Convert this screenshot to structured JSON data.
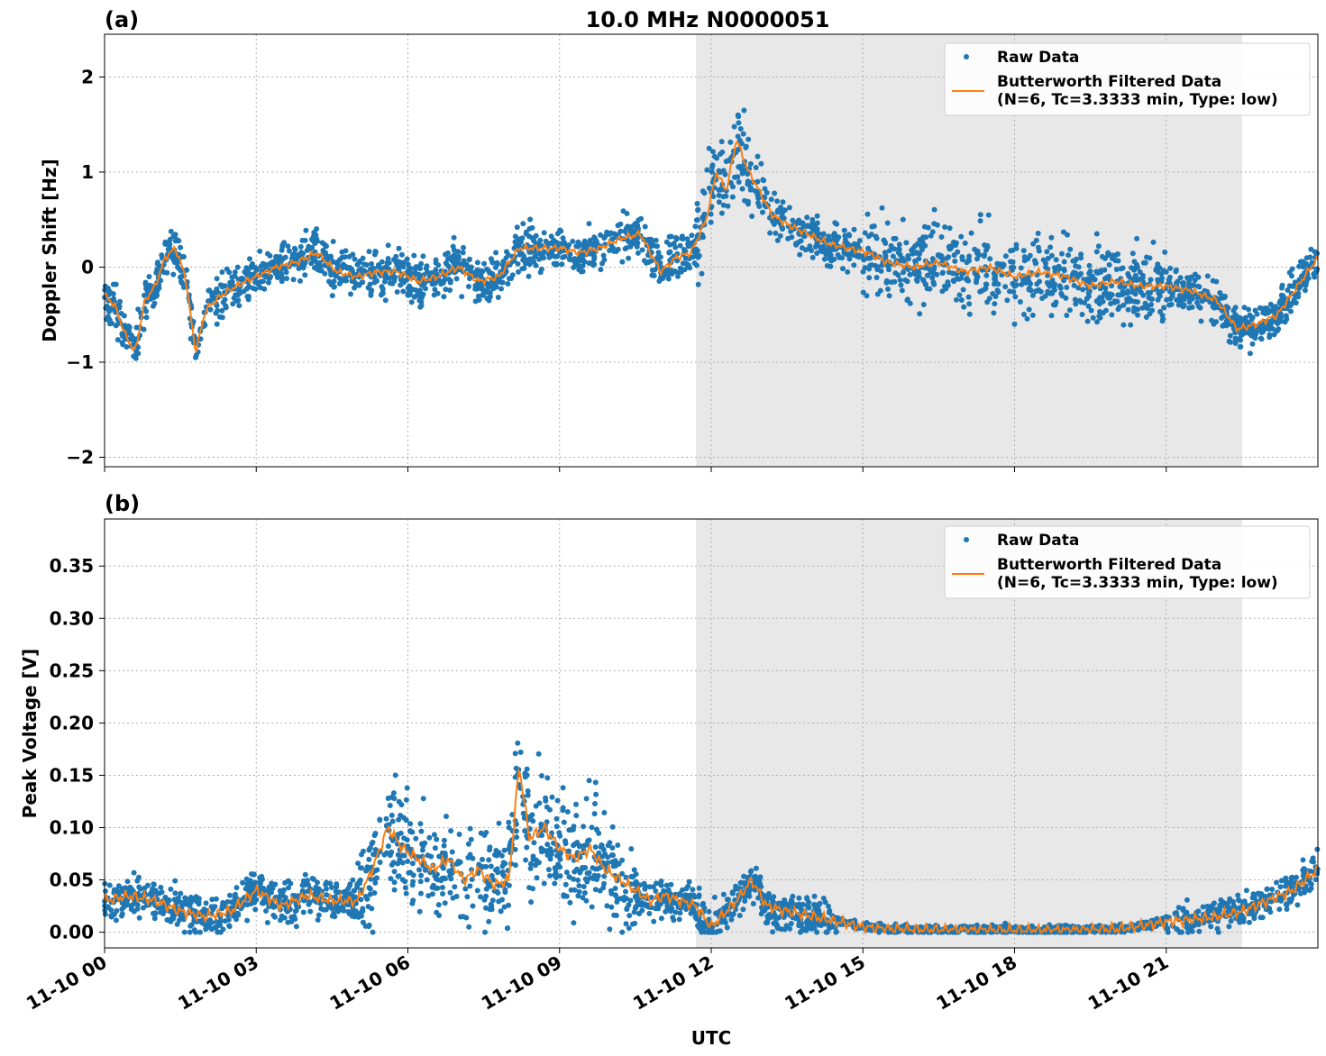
{
  "figure_title": "10.0 MHz N0000051",
  "xlabel": "UTC",
  "x_tick_labels": [
    "11-10 00",
    "11-10 03",
    "11-10 06",
    "11-10 09",
    "11-10 12",
    "11-10 15",
    "11-10 18",
    "11-10 21"
  ],
  "colors": {
    "raw": "#1f77b4",
    "filtered": "#ff7f0e",
    "night_shade": "#e8e8e8",
    "grid": "#b0b0b0"
  },
  "legend": {
    "raw_label": "Raw Data",
    "filtered_line1": "Butterworth Filtered Data",
    "filtered_line2": "(N=6, Tc=3.3333 min, Type: low)",
    "placement": "top-right"
  },
  "chart_data": [
    {
      "panel_label": "(a)",
      "type": "scatter",
      "ylabel": "Doppler Shift [Hz]",
      "xlim_hours": [
        0,
        24
      ],
      "ylim": [
        -2.1,
        2.45
      ],
      "y_ticks": [
        -2,
        -1,
        0,
        1,
        2
      ],
      "y_tick_labels": [
        "−2",
        "−1",
        "0",
        "1",
        "2"
      ],
      "grid": true,
      "shaded_x_range_hours": [
        11.7,
        22.5
      ],
      "series": [
        {
          "name": "Raw Data",
          "style": "dots"
        },
        {
          "name": "Butterworth Filtered Data (N=6, Tc=3.3333 min, Type: low)",
          "style": "line",
          "x_hours": [
            0,
            0.2,
            0.4,
            0.6,
            0.8,
            1.0,
            1.2,
            1.4,
            1.6,
            1.8,
            2.0,
            2.3,
            2.6,
            3.0,
            3.4,
            3.8,
            4.2,
            4.6,
            5.0,
            5.4,
            5.8,
            6.2,
            6.6,
            7.0,
            7.4,
            7.8,
            8.2,
            8.6,
            9.0,
            9.4,
            9.8,
            10.2,
            10.6,
            11.0,
            11.3,
            11.6,
            11.9,
            12.1,
            12.3,
            12.5,
            12.7,
            12.9,
            13.2,
            13.5,
            13.9,
            14.3,
            14.7,
            15.1,
            15.5,
            16.0,
            16.5,
            17.0,
            17.5,
            18.0,
            18.5,
            19.0,
            19.5,
            20.0,
            20.5,
            21.0,
            21.5,
            22.0,
            22.4,
            22.8,
            23.2,
            23.6,
            24.0
          ],
          "y": [
            -0.3,
            -0.4,
            -0.7,
            -0.9,
            -0.35,
            -0.2,
            0.1,
            0.2,
            -0.1,
            -0.9,
            -0.45,
            -0.3,
            -0.2,
            -0.1,
            0.0,
            0.05,
            0.15,
            -0.05,
            -0.1,
            -0.05,
            -0.05,
            -0.15,
            -0.1,
            0.0,
            -0.15,
            -0.1,
            0.2,
            0.2,
            0.2,
            0.15,
            0.2,
            0.3,
            0.35,
            -0.05,
            0.1,
            0.15,
            0.5,
            1.0,
            0.8,
            1.35,
            1.05,
            0.85,
            0.55,
            0.45,
            0.35,
            0.25,
            0.2,
            0.15,
            0.05,
            0.0,
            0.05,
            -0.05,
            0.0,
            -0.1,
            -0.05,
            -0.1,
            -0.2,
            -0.15,
            -0.2,
            -0.2,
            -0.25,
            -0.35,
            -0.65,
            -0.6,
            -0.5,
            -0.2,
            0.1
          ]
        }
      ]
    },
    {
      "panel_label": "(b)",
      "type": "scatter",
      "ylabel": "Peak Voltage [V]",
      "xlim_hours": [
        0,
        24
      ],
      "ylim": [
        -0.015,
        0.395
      ],
      "y_ticks": [
        0.0,
        0.05,
        0.1,
        0.15,
        0.2,
        0.25,
        0.3,
        0.35
      ],
      "y_tick_labels": [
        "0.00",
        "0.05",
        "0.10",
        "0.15",
        "0.20",
        "0.25",
        "0.30",
        "0.35"
      ],
      "grid": true,
      "shaded_x_range_hours": [
        11.7,
        22.5
      ],
      "series": [
        {
          "name": "Raw Data",
          "style": "dots"
        },
        {
          "name": "Butterworth Filtered Data (N=6, Tc=3.3333 min, Type: low)",
          "style": "line",
          "x_hours": [
            0,
            0.5,
            1.0,
            1.5,
            2.0,
            2.5,
            3.0,
            3.5,
            4.0,
            4.5,
            5.0,
            5.3,
            5.6,
            5.9,
            6.2,
            6.5,
            6.8,
            7.1,
            7.4,
            7.7,
            8.0,
            8.2,
            8.4,
            8.7,
            9.0,
            9.3,
            9.6,
            9.9,
            10.2,
            10.5,
            10.8,
            11.1,
            11.4,
            11.7,
            12.0,
            12.2,
            12.5,
            12.8,
            13.1,
            13.5,
            14.0,
            14.5,
            15.0,
            15.5,
            16.0,
            17.0,
            18.0,
            19.0,
            20.0,
            20.5,
            21.0,
            21.5,
            22.0,
            22.5,
            23.0,
            23.5,
            24.0
          ],
          "y": [
            0.03,
            0.035,
            0.03,
            0.02,
            0.015,
            0.02,
            0.04,
            0.025,
            0.035,
            0.03,
            0.03,
            0.06,
            0.1,
            0.08,
            0.07,
            0.06,
            0.07,
            0.05,
            0.06,
            0.045,
            0.05,
            0.16,
            0.09,
            0.1,
            0.08,
            0.07,
            0.08,
            0.06,
            0.05,
            0.04,
            0.03,
            0.035,
            0.03,
            0.025,
            0.005,
            0.015,
            0.03,
            0.05,
            0.025,
            0.02,
            0.015,
            0.01,
            0.005,
            0.003,
            0.003,
            0.002,
            0.002,
            0.002,
            0.003,
            0.006,
            0.01,
            0.012,
            0.015,
            0.02,
            0.03,
            0.04,
            0.06
          ]
        }
      ]
    }
  ]
}
